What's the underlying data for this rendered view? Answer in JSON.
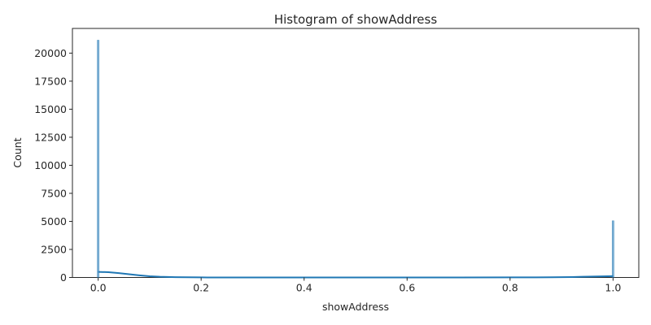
{
  "chart_data": {
    "type": "bar",
    "title": "Histogram of showAddress",
    "xlabel": "showAddress",
    "ylabel": "Count",
    "xlim": [
      -0.05,
      1.05
    ],
    "ylim": [
      0,
      22200
    ],
    "xticks": [
      0.0,
      0.2,
      0.4,
      0.6,
      0.8,
      1.0
    ],
    "xtick_labels": [
      "0.0",
      "0.2",
      "0.4",
      "0.6",
      "0.8",
      "1.0"
    ],
    "yticks": [
      0,
      2500,
      5000,
      7500,
      10000,
      12500,
      15000,
      17500,
      20000
    ],
    "ytick_labels": [
      "0",
      "2500",
      "5000",
      "7500",
      "10000",
      "12500",
      "15000",
      "17500",
      "20000"
    ],
    "grid": false,
    "bars": [
      {
        "x": 0.0,
        "value": 21150
      },
      {
        "x": 1.0,
        "value": 5050
      }
    ],
    "kde": {
      "x": [
        0.0,
        0.02,
        0.04,
        0.06,
        0.08,
        0.1,
        0.12,
        0.15,
        0.2,
        0.3,
        0.4,
        0.5,
        0.6,
        0.7,
        0.8,
        0.85,
        0.88,
        0.9,
        0.92,
        0.94,
        0.96,
        0.98,
        1.0
      ],
      "y": [
        500,
        470,
        390,
        290,
        190,
        110,
        60,
        25,
        5,
        0,
        0,
        0,
        0,
        0,
        5,
        10,
        15,
        25,
        40,
        60,
        80,
        100,
        120
      ]
    },
    "colors": {
      "bar": "#1f77b4",
      "kde": "#1f77b4"
    }
  }
}
